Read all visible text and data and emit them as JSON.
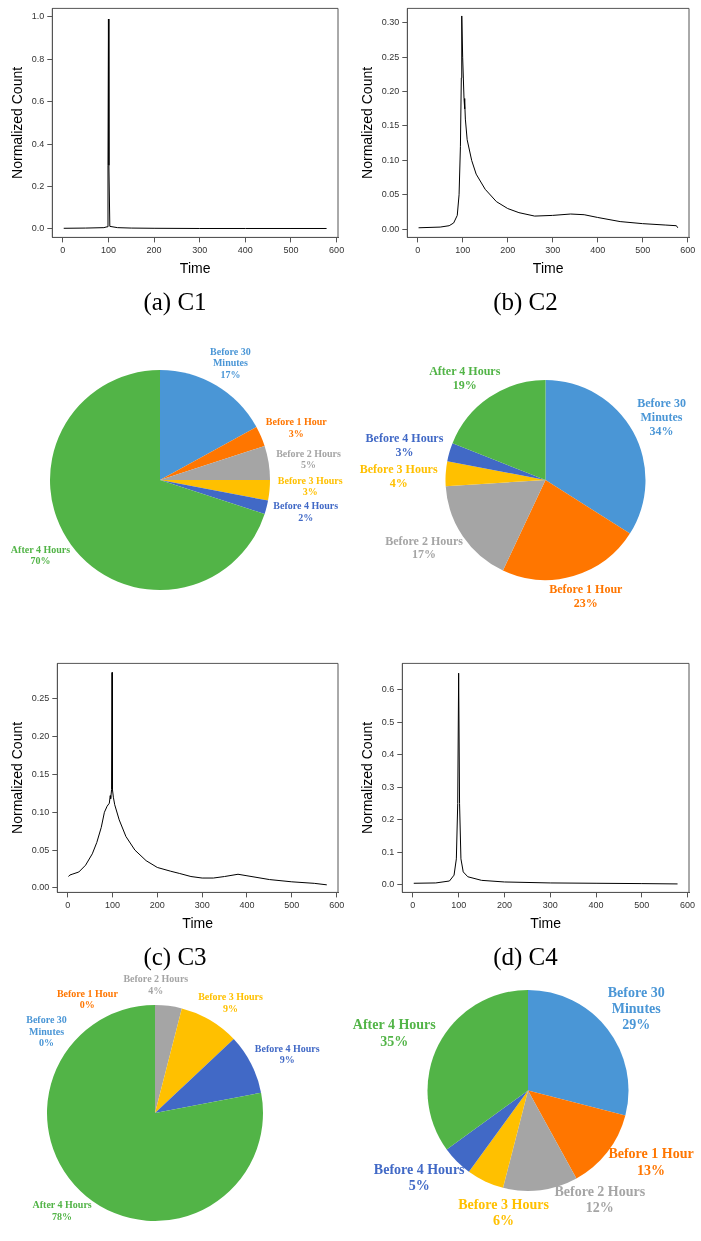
{
  "chart_data": [
    {
      "type": "line",
      "xlabel": "Time",
      "ylabel": "Normalized Count",
      "annotations": [
        "(a) C1"
      ],
      "color": "#000000",
      "marker": "none",
      "grid": false,
      "legend": false,
      "xlim": [
        -23,
        603
      ],
      "ylim": [
        -0.04,
        1.04
      ],
      "xticks": [
        0,
        100,
        200,
        300,
        400,
        500,
        600
      ],
      "yticks": [
        {
          "value": 0,
          "label": "0.0"
        },
        0.2,
        0.4,
        0.6,
        0.8,
        {
          "value": 1,
          "label": "1.0"
        }
      ],
      "x": [
        2,
        50,
        90,
        97,
        99,
        100,
        101,
        103,
        120,
        150,
        200,
        300,
        400,
        500,
        578
      ],
      "values": [
        0.003,
        0.004,
        0.006,
        0.01,
        0.3,
        0.99,
        0.3,
        0.012,
        0.006,
        0.004,
        0.003,
        0.002,
        0.002,
        0.002,
        0.002
      ]
    },
    {
      "type": "line",
      "xlabel": "Time",
      "ylabel": "Normalized Count",
      "annotations": [
        "(b) C2"
      ],
      "color": "#000000",
      "marker": "none",
      "grid": false,
      "legend": false,
      "xlim": [
        -23,
        603
      ],
      "ylim": [
        -0.012,
        0.321
      ],
      "xticks": [
        0,
        100,
        200,
        300,
        400,
        500,
        600
      ],
      "yticks": [
        {
          "value": 0,
          "label": "0.00"
        },
        0.05,
        {
          "value": 0.1,
          "label": "0.10"
        },
        0.15,
        {
          "value": 0.2,
          "label": "0.20"
        },
        0.25,
        {
          "value": 0.3,
          "label": "0.30"
        }
      ],
      "x": [
        2,
        50,
        70,
        80,
        88,
        92,
        95,
        97,
        98,
        100,
        103,
        104,
        105,
        106,
        110,
        120,
        130,
        150,
        175,
        200,
        225,
        260,
        300,
        340,
        370,
        400,
        450,
        500,
        550,
        575,
        578
      ],
      "values": [
        0.002,
        0.003,
        0.005,
        0.009,
        0.02,
        0.05,
        0.12,
        0.22,
        0.31,
        0.25,
        0.19,
        0.175,
        0.185,
        0.16,
        0.13,
        0.1,
        0.08,
        0.058,
        0.04,
        0.03,
        0.024,
        0.019,
        0.02,
        0.022,
        0.021,
        0.017,
        0.011,
        0.008,
        0.006,
        0.005,
        0.002
      ]
    },
    {
      "type": "pie",
      "categories": [
        "Before 30 Minutes",
        "Before 1 Hour",
        "Before 2 Hours",
        "Before 3 Hours",
        "Before 4 Hours",
        "After 4 Hours"
      ],
      "values": [
        17,
        3,
        5,
        3,
        2,
        70
      ],
      "value_labels": [
        "17%",
        "3%",
        "5%",
        "3%",
        "2%",
        "70%"
      ],
      "colors": [
        "#4a96d6",
        "#ff7600",
        "#a5a5a5",
        "#ffc000",
        "#4169c6",
        "#52b447"
      ]
    },
    {
      "type": "pie",
      "categories": [
        "Before 30 Minutes",
        "Before 1 Hour",
        "Before 2 Hours",
        "Before 3 Hours",
        "Before 4 Hours",
        "After 4 Hours"
      ],
      "values": [
        34,
        23,
        17,
        4,
        3,
        19
      ],
      "value_labels": [
        "34%",
        "23%",
        "17%",
        "4%",
        "3%",
        "19%"
      ],
      "colors": [
        "#4a96d6",
        "#ff7600",
        "#a5a5a5",
        "#ffc000",
        "#4169c6",
        "#52b447"
      ]
    },
    {
      "type": "line",
      "xlabel": "Time",
      "ylabel": "Normalized Count",
      "annotations": [
        "(c) C3"
      ],
      "color": "#000000",
      "marker": "none",
      "grid": false,
      "legend": false,
      "xlim": [
        -23,
        603
      ],
      "ylim": [
        -0.006,
        0.297
      ],
      "xticks": [
        0,
        100,
        200,
        300,
        400,
        500,
        600
      ],
      "yticks": [
        {
          "value": 0,
          "label": "0.00"
        },
        0.05,
        {
          "value": 0.1,
          "label": "0.10"
        },
        0.15,
        {
          "value": 0.2,
          "label": "0.20"
        },
        0.25
      ],
      "x": [
        2,
        5,
        10,
        25,
        40,
        55,
        65,
        75,
        82,
        88,
        93,
        95,
        96,
        98,
        99,
        100,
        102,
        105,
        115,
        130,
        150,
        175,
        200,
        230,
        250,
        275,
        300,
        325,
        350,
        380,
        400,
        450,
        500,
        550,
        578
      ],
      "values": [
        0.015,
        0.017,
        0.018,
        0.021,
        0.03,
        0.045,
        0.06,
        0.08,
        0.1,
        0.108,
        0.112,
        0.122,
        0.118,
        0.13,
        0.285,
        0.13,
        0.12,
        0.11,
        0.09,
        0.068,
        0.05,
        0.036,
        0.027,
        0.022,
        0.019,
        0.015,
        0.013,
        0.013,
        0.015,
        0.018,
        0.016,
        0.011,
        0.008,
        0.006,
        0.004
      ]
    },
    {
      "type": "line",
      "xlabel": "Time",
      "ylabel": "Normalized Count",
      "annotations": [
        "(d) C4"
      ],
      "color": "#000000",
      "marker": "none",
      "grid": false,
      "legend": false,
      "xlim": [
        -23,
        603
      ],
      "ylim": [
        -0.023,
        0.68
      ],
      "xticks": [
        0,
        100,
        200,
        300,
        400,
        500,
        600
      ],
      "yticks": [
        {
          "value": 0,
          "label": "0.0"
        },
        0.1,
        0.2,
        0.3,
        0.4,
        0.5,
        0.6
      ],
      "x": [
        2,
        50,
        80,
        90,
        95,
        98,
        100,
        102,
        105,
        110,
        120,
        150,
        200,
        300,
        400,
        500,
        578
      ],
      "values": [
        0.005,
        0.006,
        0.012,
        0.03,
        0.08,
        0.25,
        0.65,
        0.25,
        0.08,
        0.04,
        0.025,
        0.014,
        0.009,
        0.006,
        0.005,
        0.004,
        0.003
      ]
    },
    {
      "type": "pie",
      "categories": [
        "Before 30 Minutes",
        "Before 1 Hour",
        "Before 2 Hours",
        "Before 3 Hours",
        "Before 4 Hours",
        "After 4 Hours"
      ],
      "values": [
        0,
        0,
        4,
        9,
        9,
        78
      ],
      "value_labels": [
        "0%",
        "0%",
        "4%",
        "9%",
        "9%",
        "78%"
      ],
      "colors": [
        "#4a96d6",
        "#ff7600",
        "#a5a5a5",
        "#ffc000",
        "#4169c6",
        "#52b447"
      ]
    },
    {
      "type": "pie",
      "categories": [
        "Before 30 Minutes",
        "Before 1 Hour",
        "Before 2 Hours",
        "Before 3 Hours",
        "Before 4 Hours",
        "After 4 Hours"
      ],
      "values": [
        29,
        13,
        12,
        6,
        5,
        35
      ],
      "value_labels": [
        "29%",
        "13%",
        "12%",
        "6%",
        "5%",
        "35%"
      ],
      "colors": [
        "#4a96d6",
        "#ff7600",
        "#a5a5a5",
        "#ffc000",
        "#4169c6",
        "#52b447"
      ]
    }
  ]
}
